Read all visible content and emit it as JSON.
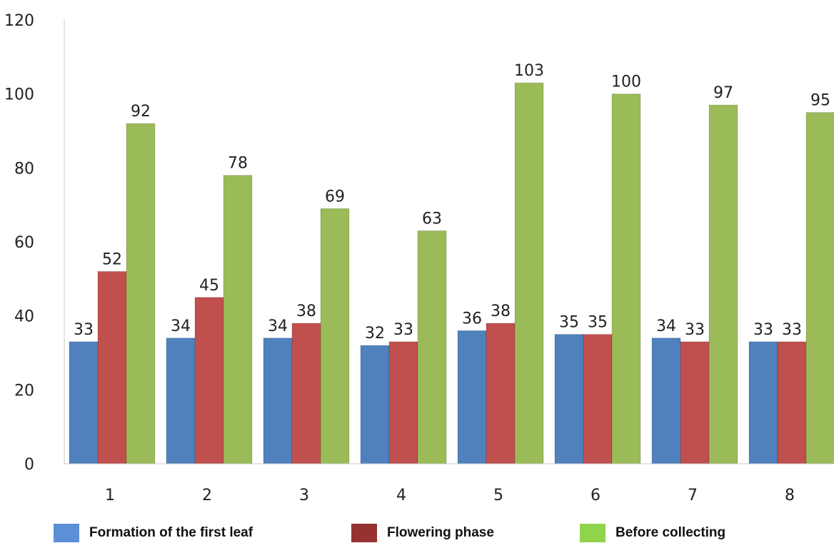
{
  "chart_data": {
    "type": "bar",
    "categories": [
      "1",
      "2",
      "3",
      "4",
      "5",
      "6",
      "7",
      "8"
    ],
    "series": [
      {
        "name": "Formation of the first leaf",
        "color": "#4f81bd",
        "values": [
          33,
          34,
          34,
          32,
          36,
          35,
          34,
          33
        ]
      },
      {
        "name": "Flowering phase",
        "color": "#c0504d",
        "values": [
          52,
          45,
          38,
          33,
          38,
          35,
          33,
          33
        ]
      },
      {
        "name": "Before collecting",
        "color": "#9bbb59",
        "values": [
          92,
          78,
          69,
          63,
          103,
          100,
          97,
          95
        ]
      }
    ],
    "yticks": [
      "0",
      "20",
      "40",
      "60",
      "80",
      "100",
      "120"
    ],
    "ylim": [
      0,
      120
    ],
    "legend_position": "bottom",
    "grid": false
  },
  "legend": [
    {
      "label": "Formation of the first leaf",
      "color": "#5b8fd6"
    },
    {
      "label": "Flowering phase",
      "color": "#963232"
    },
    {
      "label": "Before collecting",
      "color": "#8fd44a"
    }
  ]
}
